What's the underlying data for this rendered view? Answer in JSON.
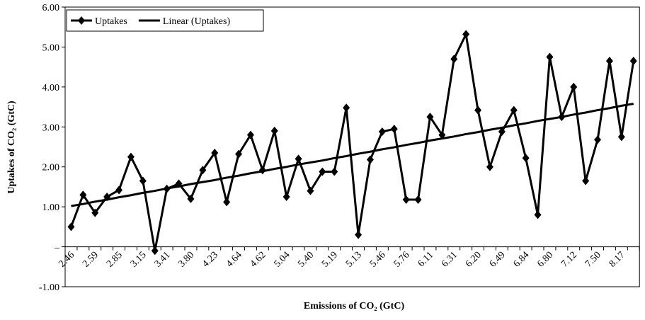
{
  "chart_data": {
    "type": "line",
    "x_label": "Emissions of CO₂ (GtC)",
    "y_label": "Uptakes of CO₂ (GtC)",
    "categories": [
      "2.46",
      null,
      "2.59",
      null,
      "2.85",
      null,
      "3.15",
      null,
      "3.41",
      null,
      "3.80",
      null,
      "4.23",
      null,
      "4.64",
      null,
      "4.62",
      null,
      "5.04",
      null,
      "5.40",
      null,
      "5.19",
      null,
      "5.13",
      null,
      "5.46",
      null,
      "5.76",
      null,
      "6.11",
      null,
      "6.31",
      null,
      "6.20",
      null,
      "6.49",
      null,
      "6.84",
      null,
      "6.80",
      null,
      "7.12",
      null,
      "7.50",
      null,
      "8.17",
      null
    ],
    "series": [
      {
        "name": "Uptakes",
        "color": "#000000",
        "marker": "diamond",
        "values": [
          0.5,
          1.3,
          0.85,
          1.25,
          1.42,
          2.25,
          1.65,
          -0.1,
          1.45,
          1.58,
          1.2,
          1.92,
          2.35,
          1.12,
          2.32,
          2.8,
          1.92,
          2.9,
          1.25,
          2.2,
          1.4,
          1.88,
          1.88,
          3.48,
          0.3,
          2.18,
          2.88,
          2.95,
          1.18,
          1.18,
          3.25,
          2.8,
          4.7,
          5.32,
          3.42,
          2.0,
          2.88,
          3.42,
          2.22,
          0.8,
          4.75,
          3.25,
          4.0,
          1.65,
          2.68,
          4.65,
          2.75,
          4.65
        ]
      },
      {
        "name": "Linear (Uptakes)",
        "color": "#000000",
        "marker": "none",
        "values": [
          1.02,
          1.07,
          1.13,
          1.18,
          1.24,
          1.29,
          1.35,
          1.4,
          1.46,
          1.51,
          1.57,
          1.62,
          1.67,
          1.73,
          1.78,
          1.84,
          1.89,
          1.95,
          2.0,
          2.06,
          2.11,
          2.16,
          2.22,
          2.27,
          2.33,
          2.38,
          2.44,
          2.49,
          2.55,
          2.6,
          2.66,
          2.71,
          2.76,
          2.82,
          2.87,
          2.93,
          2.98,
          3.04,
          3.09,
          3.15,
          3.2,
          3.25,
          3.31,
          3.36,
          3.42,
          3.47,
          3.53,
          3.58
        ]
      }
    ],
    "ylim": [
      -1,
      6
    ],
    "yticks": [
      {
        "value": -1,
        "label": "-1.00"
      },
      {
        "value": 0,
        "label": "–"
      },
      {
        "value": 1,
        "label": "1.00"
      },
      {
        "value": 2,
        "label": "2.00"
      },
      {
        "value": 3,
        "label": "3.00"
      },
      {
        "value": 4,
        "label": "4.00"
      },
      {
        "value": 5,
        "label": "5.00"
      },
      {
        "value": 6,
        "label": "6.00"
      }
    ],
    "legend": "top-left"
  }
}
